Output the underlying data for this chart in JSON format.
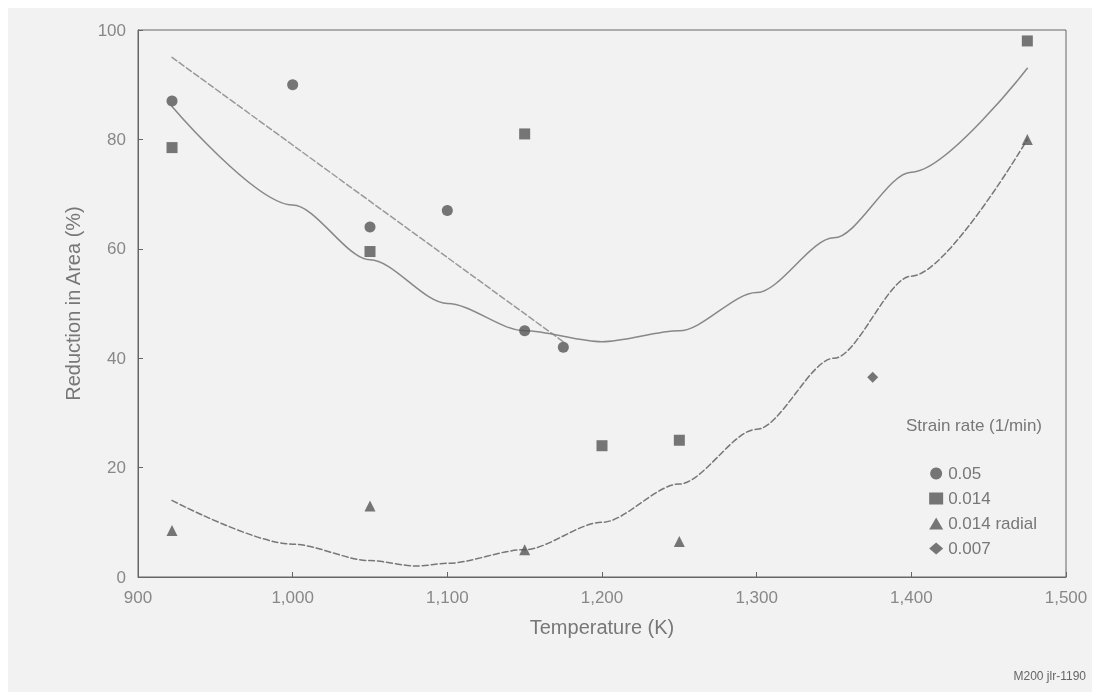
{
  "chart_data": {
    "type": "scatter",
    "xlabel": "Temperature (K)",
    "ylabel": "Reduction in Area (%)",
    "legend_title": "Strain rate (1/min)",
    "legend": "bottom right",
    "grid": false,
    "xlim": [
      900,
      1500
    ],
    "xticks": [
      900,
      {
        "value": 1000,
        "label": "1,000"
      },
      {
        "value": 1100,
        "label": "1,100"
      },
      {
        "value": 1200,
        "label": "1,200"
      },
      {
        "value": 1300,
        "label": "1,300"
      },
      {
        "value": 1400,
        "label": "1,400"
      },
      {
        "value": 1500,
        "label": "1,500"
      }
    ],
    "ylim": [
      0,
      100
    ],
    "yticks": [
      0,
      20,
      40,
      60,
      80,
      100
    ],
    "annotations": [
      "M200 jlr-1190"
    ],
    "series": [
      {
        "name": "0.05",
        "marker": "circle",
        "color": "#555555",
        "x": [
          922,
          1000,
          1050,
          1100,
          1150,
          1175
        ],
        "values": [
          87,
          90,
          64,
          67,
          45,
          42
        ]
      },
      {
        "name": "0.014",
        "marker": "square",
        "color": "#555555",
        "x": [
          922,
          1050,
          1150,
          1200,
          1250,
          1475
        ],
        "values": [
          78.5,
          59.5,
          81,
          24,
          25,
          98
        ]
      },
      {
        "name": "0.014 radial",
        "marker": "triangle",
        "color": "#555555",
        "x": [
          922,
          1050,
          1150,
          1250,
          1475
        ],
        "values": [
          8.5,
          13,
          5,
          6.5,
          80
        ]
      },
      {
        "name": "0.007",
        "marker": "diamond",
        "color": "#555555",
        "x": [
          1375
        ],
        "values": [
          36.5
        ]
      },
      {
        "type": "line",
        "line_style": "dashed",
        "color": "#999999",
        "x": [
          922,
          1175
        ],
        "values": [
          95,
          43
        ]
      },
      {
        "type": "line",
        "line_style": "solid",
        "color": "#888888",
        "x": [
          922,
          1000,
          1050,
          1100,
          1150,
          1200,
          1250,
          1300,
          1350,
          1400,
          1475
        ],
        "values": [
          86,
          68,
          58,
          50,
          45,
          43,
          45,
          52,
          62,
          74,
          93
        ]
      },
      {
        "type": "line",
        "line_style": "dashed",
        "color": "#777777",
        "x": [
          922,
          1000,
          1050,
          1080,
          1100,
          1150,
          1200,
          1250,
          1300,
          1350,
          1400,
          1475
        ],
        "values": [
          14,
          6,
          3,
          2,
          2.5,
          5,
          10,
          17,
          27,
          40,
          55,
          80
        ]
      }
    ]
  }
}
